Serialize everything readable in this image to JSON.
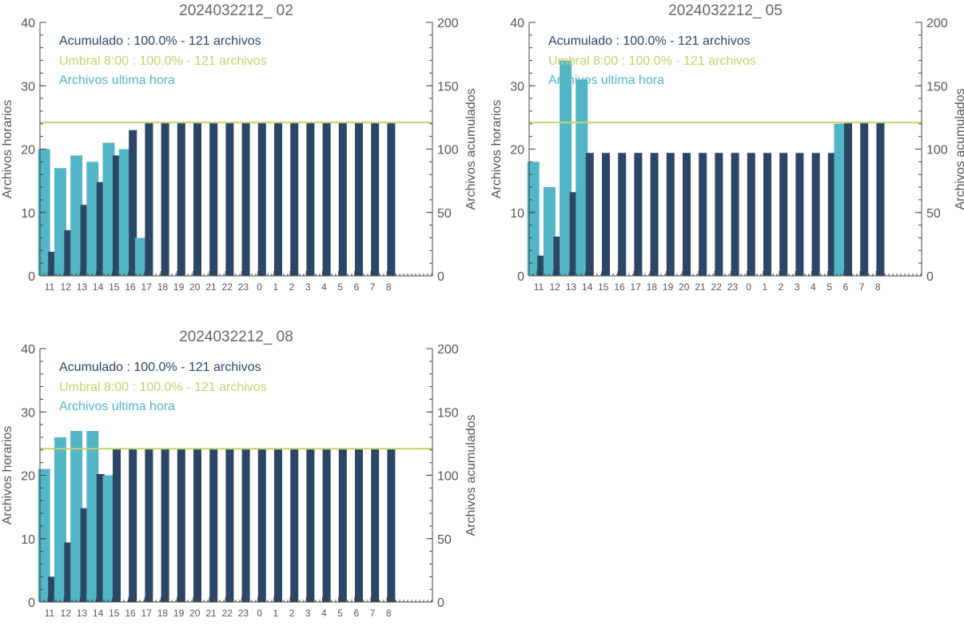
{
  "colors": {
    "accumulated": "#2c4665",
    "hourly": "#52b6c6",
    "threshold": "#c6d16a",
    "axis": "#444444",
    "label": "#555555",
    "title": "#666666"
  },
  "chart_data": [
    {
      "type": "bar",
      "title": "2024032212_ 02",
      "ylabel": "Archivos horarios",
      "y2label": "Archivos acumulados",
      "ylim": [
        0,
        40
      ],
      "y2lim": [
        0,
        200
      ],
      "yticks": [
        "0",
        "10",
        "20",
        "30",
        "40"
      ],
      "y2ticks": [
        "0",
        "50",
        "100",
        "150",
        "200"
      ],
      "categories": [
        "11",
        "12",
        "13",
        "14",
        "15",
        "16",
        "17",
        "18",
        "19",
        "20",
        "21",
        "22",
        "23",
        "0",
        "1",
        "2",
        "3",
        "4",
        "5",
        "6",
        "7",
        "8"
      ],
      "legend": {
        "accumulated": "Acumulado : 100.0% - 121 archivos",
        "threshold": "Umbral 8:00 : 100.0% - 121 archivos",
        "hourly": "Archivos ultima hora"
      },
      "threshold": 121,
      "series": [
        {
          "name": "Archivos ultima hora",
          "axis": "left",
          "values": [
            20,
            17,
            19,
            18,
            21,
            20,
            6,
            null,
            null,
            null,
            null,
            null,
            null,
            null,
            null,
            null,
            null,
            null,
            null,
            null,
            null,
            null
          ]
        },
        {
          "name": "Acumulado",
          "axis": "right",
          "values": [
            19,
            36,
            56,
            74,
            95,
            115,
            121,
            121,
            121,
            121,
            121,
            121,
            121,
            121,
            121,
            121,
            121,
            121,
            121,
            121,
            121,
            121
          ]
        }
      ]
    },
    {
      "type": "bar",
      "title": "2024032212_ 05",
      "ylabel": "Archivos horarios",
      "y2label": "Archivos acumulados",
      "ylim": [
        0,
        40
      ],
      "y2lim": [
        0,
        200
      ],
      "yticks": [
        "0",
        "10",
        "20",
        "30",
        "40"
      ],
      "y2ticks": [
        "0",
        "50",
        "100",
        "150",
        "200"
      ],
      "categories": [
        "11",
        "12",
        "13",
        "14",
        "15",
        "16",
        "17",
        "18",
        "19",
        "20",
        "21",
        "22",
        "23",
        "0",
        "1",
        "2",
        "3",
        "4",
        "5",
        "6",
        "7",
        "8"
      ],
      "legend": {
        "accumulated": "Acumulado : 100.0% - 121 archivos",
        "threshold": "Umbral 8:00 : 100.0% - 121 archivos",
        "hourly": "Archivos ultima hora"
      },
      "threshold": 121,
      "series": [
        {
          "name": "Archivos ultima hora",
          "axis": "left",
          "values": [
            18,
            14,
            34,
            31,
            null,
            null,
            null,
            null,
            null,
            null,
            null,
            null,
            null,
            null,
            null,
            null,
            null,
            null,
            null,
            24,
            null,
            null
          ]
        },
        {
          "name": "Acumulado",
          "axis": "right",
          "values": [
            16,
            31,
            66,
            97,
            97,
            97,
            97,
            97,
            97,
            97,
            97,
            97,
            97,
            97,
            97,
            97,
            97,
            97,
            97,
            121,
            121,
            121
          ]
        }
      ]
    },
    {
      "type": "bar",
      "title": "2024032212_ 08",
      "ylabel": "Archivos horarios",
      "y2label": "Archivos acumulados",
      "ylim": [
        0,
        40
      ],
      "y2lim": [
        0,
        200
      ],
      "yticks": [
        "0",
        "10",
        "20",
        "30",
        "40"
      ],
      "y2ticks": [
        "0",
        "50",
        "100",
        "150",
        "200"
      ],
      "categories": [
        "11",
        "12",
        "13",
        "14",
        "15",
        "16",
        "17",
        "18",
        "19",
        "20",
        "21",
        "22",
        "23",
        "0",
        "1",
        "2",
        "3",
        "4",
        "5",
        "6",
        "7",
        "8"
      ],
      "legend": {
        "accumulated": "Acumulado : 100.0% - 121 archivos",
        "threshold": "Umbral 8:00 : 100.0% - 121 archivos",
        "hourly": "Archivos ultima hora"
      },
      "threshold": 121,
      "series": [
        {
          "name": "Archivos ultima hora",
          "axis": "left",
          "values": [
            21,
            26,
            27,
            27,
            20,
            null,
            null,
            null,
            null,
            null,
            null,
            null,
            null,
            null,
            null,
            null,
            null,
            null,
            null,
            null,
            null,
            null
          ]
        },
        {
          "name": "Acumulado",
          "axis": "right",
          "values": [
            20,
            47,
            74,
            101,
            121,
            121,
            121,
            121,
            121,
            121,
            121,
            121,
            121,
            121,
            121,
            121,
            121,
            121,
            121,
            121,
            121,
            121
          ]
        }
      ]
    }
  ]
}
